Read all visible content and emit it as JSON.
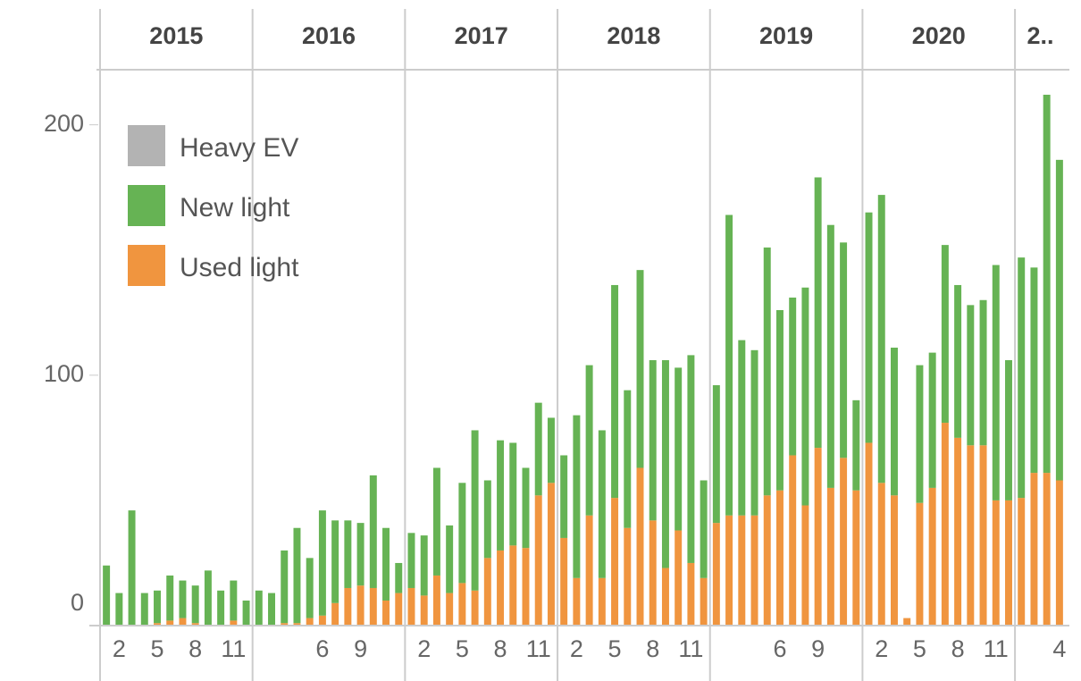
{
  "chart_data": {
    "type": "stacked_bar",
    "years": [
      "2015",
      "2016",
      "2017",
      "2018",
      "2019",
      "2020",
      "2.."
    ],
    "categories": [
      null,
      "2",
      null,
      null,
      "5",
      null,
      null,
      "8",
      null,
      null,
      "11",
      null,
      null,
      null,
      null,
      null,
      null,
      "6",
      null,
      null,
      "9",
      null,
      null,
      null,
      null,
      "2",
      null,
      null,
      "5",
      null,
      null,
      "8",
      null,
      null,
      "11",
      null,
      null,
      "2",
      null,
      null,
      "5",
      null,
      null,
      "8",
      null,
      null,
      "11",
      null,
      null,
      null,
      null,
      null,
      null,
      "6",
      null,
      null,
      "9",
      null,
      null,
      null,
      null,
      "2",
      null,
      null,
      "5",
      null,
      null,
      "8",
      null,
      null,
      "11",
      null,
      null,
      null,
      null,
      "4"
    ],
    "series": [
      {
        "name": "Used light",
        "color": "#f0953f",
        "values": [
          0,
          0,
          0,
          0,
          1,
          2,
          3,
          1,
          0,
          0,
          2,
          0,
          0,
          0,
          1,
          1,
          3,
          4,
          9,
          15,
          16,
          15,
          10,
          13,
          15,
          12,
          20,
          13,
          17,
          14,
          27,
          30,
          32,
          31,
          52,
          57,
          35,
          19,
          44,
          19,
          51,
          39,
          63,
          42,
          23,
          38,
          25,
          19,
          41,
          44,
          44,
          44,
          52,
          54,
          68,
          48,
          71,
          55,
          67,
          54,
          73,
          57,
          52,
          3,
          49,
          55,
          81,
          75,
          72,
          72,
          50,
          50,
          51,
          61,
          61,
          58
        ]
      },
      {
        "name": "New light",
        "color": "#66b354",
        "values": [
          24,
          13,
          46,
          13,
          13,
          18,
          15,
          15,
          22,
          14,
          16,
          10,
          14,
          13,
          29,
          38,
          24,
          42,
          33,
          27,
          25,
          45,
          29,
          12,
          22,
          24,
          43,
          27,
          40,
          64,
          31,
          44,
          41,
          32,
          37,
          26,
          33,
          65,
          60,
          59,
          85,
          55,
          79,
          64,
          83,
          65,
          83,
          39,
          55,
          120,
          70,
          66,
          99,
          72,
          63,
          87,
          108,
          105,
          86,
          36,
          92,
          115,
          59,
          0,
          55,
          54,
          71,
          61,
          56,
          58,
          94,
          56,
          96,
          82,
          151,
          128
        ]
      },
      {
        "name": "Heavy EV",
        "color": "#b3b3b3",
        "values": [
          0,
          0,
          0,
          0,
          0,
          0,
          0,
          0,
          0,
          0,
          0,
          0,
          0,
          0,
          0,
          0,
          0,
          0,
          0,
          0,
          0,
          0,
          0,
          0,
          0,
          0,
          0,
          0,
          0,
          0,
          0,
          0,
          0,
          0,
          0,
          0,
          0,
          0,
          0,
          0,
          0,
          0,
          0,
          0,
          0,
          0,
          0,
          0,
          0,
          0,
          0,
          0,
          0,
          0,
          0,
          0,
          0,
          0,
          0,
          0,
          0,
          0,
          0,
          0,
          0,
          0,
          0,
          0,
          0,
          0,
          0,
          0,
          0,
          0,
          0,
          0
        ]
      }
    ],
    "ylim": [
      0,
      222
    ],
    "yticks": [
      0,
      100,
      200
    ],
    "legend": "top-left"
  }
}
